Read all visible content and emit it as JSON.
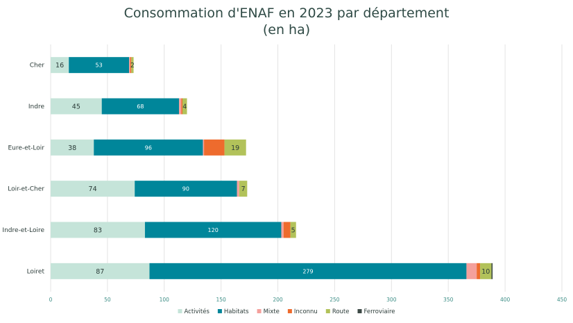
{
  "chart_data": {
    "type": "bar",
    "orientation": "horizontal",
    "stacked": true,
    "title": "Consommation d'ENAF en 2023 par département",
    "subtitle": "(en ha)",
    "categories": [
      "Cher",
      "Indre",
      "Eure-et-Loir",
      "Loir-et-Cher",
      "Indre-et-Loire",
      "Loiret"
    ],
    "series": [
      {
        "name": "Activités",
        "color": "#c5e4d9",
        "values": [
          16,
          45,
          38,
          74,
          83,
          87
        ],
        "labels": [
          "16",
          "45",
          "38",
          "74",
          "83",
          "87"
        ]
      },
      {
        "name": "Habitats",
        "color": "#00869a",
        "values": [
          53,
          68,
          96,
          90,
          120,
          279
        ],
        "labels": [
          "53",
          "68",
          "96",
          "90",
          "120",
          "279"
        ]
      },
      {
        "name": "Mixte",
        "color": "#f4a09c",
        "values": [
          1,
          2,
          1,
          2,
          2,
          9
        ],
        "labels": [
          "",
          "",
          "",
          "",
          "",
          ""
        ]
      },
      {
        "name": "Inconnu",
        "color": "#ee6b2d",
        "values": [
          1,
          1,
          18,
          0,
          6,
          3
        ],
        "labels": [
          "",
          "",
          "",
          "",
          "",
          ""
        ]
      },
      {
        "name": "Route",
        "color": "#b2c25a",
        "values": [
          2,
          4,
          19,
          7,
          5,
          10
        ],
        "labels": [
          "2",
          "4",
          "19",
          "7",
          "5",
          "10"
        ]
      },
      {
        "name": "Ferroviaire",
        "color": "#3d4a46",
        "values": [
          0,
          0,
          0,
          0,
          0,
          1
        ],
        "labels": [
          "",
          "",
          "",
          "",
          "",
          ""
        ]
      }
    ],
    "x_ticks": [
      0,
      50,
      100,
      150,
      200,
      250,
      300,
      350,
      400,
      450
    ],
    "x_tick_labels": [
      "0",
      "50",
      "100",
      "150",
      "200",
      "250",
      "300",
      "350",
      "400",
      "450"
    ],
    "xlim": [
      0,
      450
    ],
    "xlabel": "",
    "ylabel": "",
    "grid": true,
    "legend_position": "bottom"
  }
}
